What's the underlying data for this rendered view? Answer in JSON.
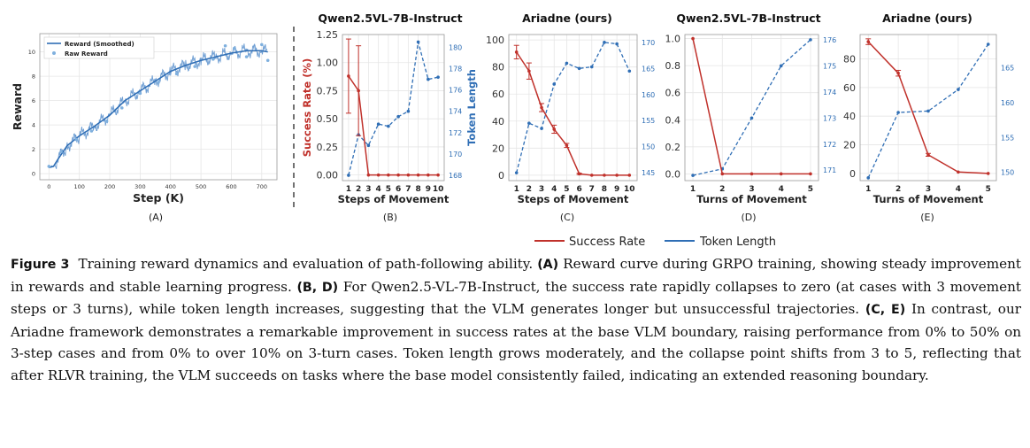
{
  "panel_letters": [
    "(A)",
    "(B)",
    "(C)",
    "(D)",
    "(E)"
  ],
  "legend": {
    "success": "Success Rate",
    "token": "Token Length"
  },
  "colors": {
    "red": "#c0312b",
    "blue": "#2f6eb5",
    "grid": "#e6e6e6"
  },
  "caption": {
    "figure_label": "Figure 3",
    "intro": "Training reward dynamics and evaluation of path-following ability.",
    "a_label": "(A)",
    "a_text": "Reward curve during GRPO training, showing steady improvement in rewards and stable learning progress.",
    "bd_label": "(B, D)",
    "bd_text": "For Qwen2.5-VL-7B-Instruct, the success rate rapidly collapses to zero (at cases with 3 movement steps or 3 turns), while token length increases, suggesting that the VLM generates longer but unsuccessful trajectories.",
    "ce_label": "(C, E)",
    "ce_text": "In contrast, our Ariadne framework demonstrates a remarkable improvement in success rates at the base VLM boundary, raising performance from 0% to 50% on 3-step cases and from 0% to over 10% on 3-turn cases. Token length grows moderately, and the collapse point shifts from 3 to 5, reflecting that after RLVR training, the VLM succeeds on tasks where the base model consistently failed, indicating an extended reasoning boundary."
  },
  "chart_data": [
    {
      "id": "A",
      "type": "line",
      "title": "",
      "xlabel": "Step (K)",
      "ylabel": "Reward",
      "xlim": [
        -30,
        750
      ],
      "ylim": [
        -0.5,
        11.5
      ],
      "xticks": [
        0,
        100,
        200,
        300,
        400,
        500,
        600,
        700
      ],
      "yticks": [
        0,
        2,
        4,
        6,
        8,
        10
      ],
      "legend_position": "top-left",
      "series": [
        {
          "name": "Reward (Smoothed)",
          "x": [
            0,
            15,
            30,
            60,
            100,
            150,
            200,
            250,
            300,
            350,
            400,
            450,
            500,
            550,
            600,
            650,
            700,
            720
          ],
          "y": [
            0.5,
            0.6,
            1.2,
            2.3,
            3.1,
            3.9,
            4.8,
            6.0,
            6.8,
            7.6,
            8.4,
            8.9,
            9.3,
            9.6,
            9.9,
            10.1,
            10.1,
            10.0
          ]
        },
        {
          "name": "Raw Reward",
          "x": [
            0,
            40,
            90,
            140,
            190,
            240,
            300,
            360,
            420,
            480,
            540,
            580,
            610,
            650,
            700,
            720
          ],
          "y": [
            0.6,
            1.8,
            2.8,
            3.5,
            4.3,
            5.4,
            6.6,
            7.5,
            8.2,
            8.8,
            9.4,
            10.5,
            10.3,
            9.6,
            10.6,
            9.3
          ]
        }
      ]
    },
    {
      "id": "B",
      "type": "line",
      "title": "Qwen2.5VL-7B-Instruct",
      "xlabel": "Steps of Movement",
      "ylabel": "Success Rate (%)",
      "ylabel_right": "Token Length",
      "x": [
        1,
        2,
        3,
        4,
        5,
        6,
        7,
        8,
        9,
        10
      ],
      "ylim": [
        -0.05,
        1.25
      ],
      "yticks": [
        0.0,
        0.25,
        0.5,
        0.75,
        1.0,
        1.25
      ],
      "ytick_labels": [
        "0.00",
        "0.25",
        "0.50",
        "0.75",
        "1.00",
        "1.25"
      ],
      "ylim_right": [
        167.5,
        181.2
      ],
      "yticks_right": [
        168,
        170,
        172,
        174,
        176,
        178,
        180
      ],
      "series": [
        {
          "name": "Success Rate",
          "axis": "left",
          "values": [
            0.88,
            0.75,
            0.0,
            0.0,
            0.0,
            0.0,
            0.0,
            0.0,
            0.0,
            0.0
          ],
          "errors": [
            0.33,
            0.4,
            0,
            0,
            0,
            0,
            0,
            0,
            0,
            0
          ]
        },
        {
          "name": "Token Length",
          "axis": "right",
          "values": [
            168.0,
            171.8,
            170.8,
            172.8,
            172.6,
            173.5,
            174.0,
            180.5,
            177.0,
            177.2
          ]
        }
      ]
    },
    {
      "id": "C",
      "type": "line",
      "title": "Ariadne (ours)",
      "xlabel": "Steps of Movement",
      "ylabel": "",
      "ylabel_right": "",
      "x": [
        1,
        2,
        3,
        4,
        5,
        6,
        7,
        8,
        9,
        10
      ],
      "ylim": [
        -4,
        104
      ],
      "yticks": [
        0,
        20,
        40,
        60,
        80,
        100
      ],
      "ytick_labels": [
        "0",
        "20",
        "40",
        "60",
        "80",
        "100"
      ],
      "ylim_right": [
        143.5,
        171.5
      ],
      "yticks_right": [
        145,
        150,
        155,
        160,
        165,
        170
      ],
      "series": [
        {
          "name": "Success Rate",
          "axis": "left",
          "values": [
            91,
            77,
            50,
            34,
            22,
            1,
            0,
            0,
            0,
            0
          ],
          "errors": [
            5,
            6,
            3,
            3,
            1.5,
            0.5,
            0,
            0,
            0,
            0
          ]
        },
        {
          "name": "Token Length",
          "axis": "right",
          "values": [
            145,
            154.5,
            153.5,
            162,
            166,
            165,
            165.3,
            170,
            169.7,
            164.5
          ]
        }
      ]
    },
    {
      "id": "D",
      "type": "line",
      "title": "Qwen2.5VL-7B-Instruct",
      "xlabel": "Turns of Movement",
      "ylabel": "",
      "ylabel_right": "",
      "x": [
        1,
        2,
        3,
        4,
        5
      ],
      "ylim": [
        -0.05,
        1.03
      ],
      "yticks": [
        0.0,
        0.2,
        0.4,
        0.6,
        0.8,
        1.0
      ],
      "ytick_labels": [
        "0.0",
        "0.2",
        "0.4",
        "0.6",
        "0.8",
        "1.0"
      ],
      "ylim_right": [
        170.6,
        176.2
      ],
      "yticks_right": [
        171,
        172,
        173,
        174,
        175,
        176
      ],
      "series": [
        {
          "name": "Success Rate",
          "axis": "left",
          "values": [
            1.0,
            0.0,
            0.0,
            0.0,
            0.0
          ],
          "errors": [
            0,
            0,
            0,
            0,
            0
          ]
        },
        {
          "name": "Token Length",
          "axis": "right",
          "values": [
            170.8,
            171.05,
            173.0,
            175.0,
            176.0
          ]
        }
      ]
    },
    {
      "id": "E",
      "type": "line",
      "title": "Ariadne (ours)",
      "xlabel": "Turns of Movement",
      "ylabel": "",
      "ylabel_right": "",
      "x": [
        1,
        2,
        3,
        4,
        5
      ],
      "ylim": [
        -5,
        97
      ],
      "yticks": [
        0,
        20,
        40,
        60,
        80
      ],
      "ytick_labels": [
        "0",
        "20",
        "40",
        "60",
        "80"
      ],
      "ylim_right": [
        148.8,
        169.8
      ],
      "yticks_right": [
        150,
        155,
        160,
        165
      ],
      "series": [
        {
          "name": "Success Rate",
          "axis": "left",
          "values": [
            92,
            70,
            13,
            1,
            0
          ],
          "errors": [
            2,
            2,
            1,
            0,
            0
          ]
        },
        {
          "name": "Token Length",
          "axis": "right",
          "values": [
            149.2,
            158.6,
            158.8,
            161.9,
            168.4
          ]
        }
      ]
    }
  ]
}
